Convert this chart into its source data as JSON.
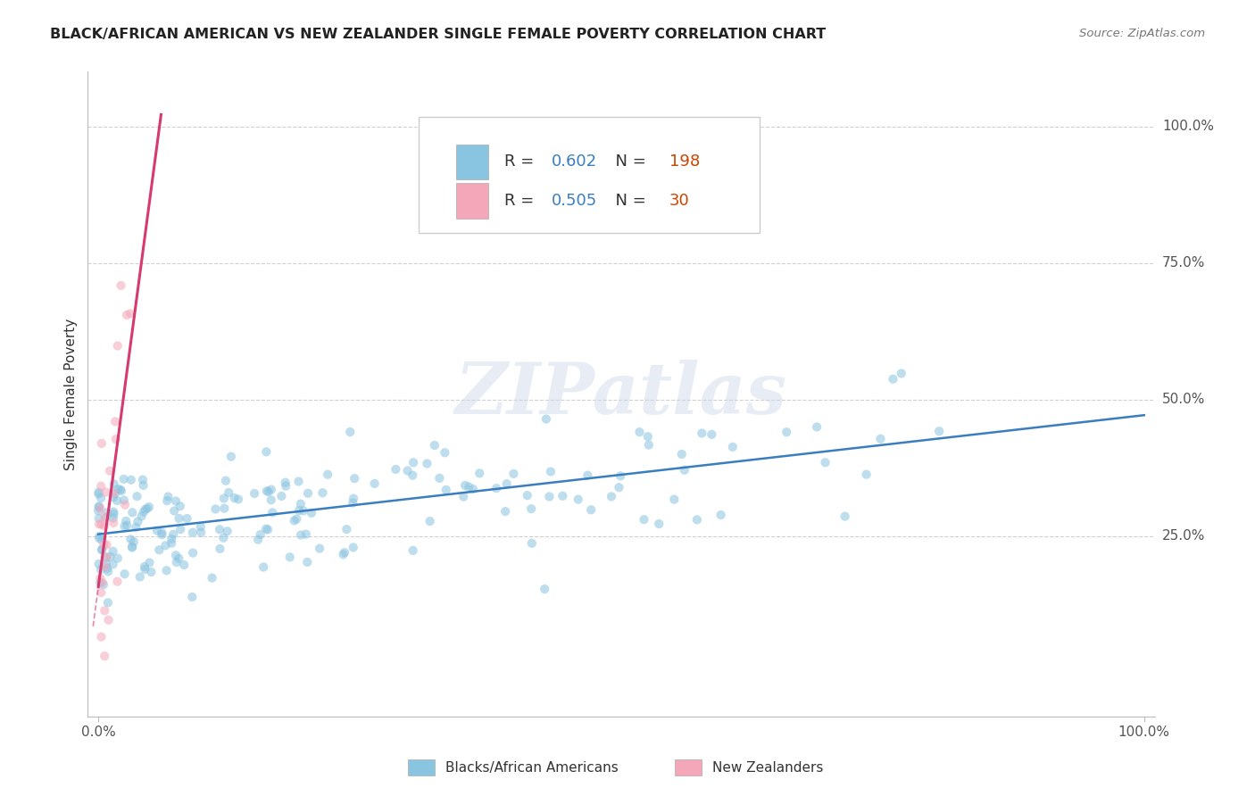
{
  "title": "BLACK/AFRICAN AMERICAN VS NEW ZEALANDER SINGLE FEMALE POVERTY CORRELATION CHART",
  "source": "Source: ZipAtlas.com",
  "ylabel": "Single Female Poverty",
  "blue_R": 0.602,
  "blue_N": 198,
  "pink_R": 0.505,
  "pink_N": 30,
  "blue_color": "#89c4e1",
  "pink_color": "#f4a7b9",
  "blue_line_color": "#3a7ebf",
  "pink_line_color": "#d63a6e",
  "watermark_text": "ZIPatlas",
  "legend_labels": [
    "Blacks/African Americans",
    "New Zealanders"
  ],
  "ytick_labels": [
    "25.0%",
    "50.0%",
    "75.0%",
    "100.0%"
  ],
  "ytick_values": [
    0.25,
    0.5,
    0.75,
    1.0
  ],
  "background_color": "#ffffff",
  "grid_color": "#cccccc",
  "title_color": "#222222",
  "source_color": "#777777",
  "label_color": "#555555"
}
